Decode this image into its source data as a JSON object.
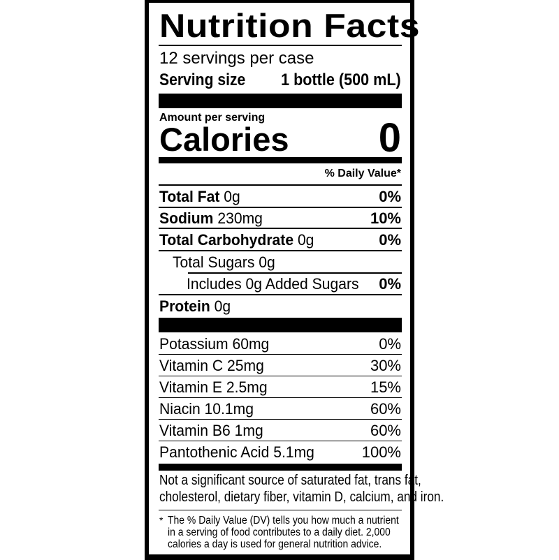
{
  "title": "Nutrition Facts",
  "servings_per_container": "12 servings per case",
  "serving_size": {
    "label": "Serving size",
    "value": "1 bottle (500 mL)"
  },
  "amount_per_serving": "Amount per serving",
  "calories": {
    "label": "Calories",
    "value": "0"
  },
  "daily_value_header": "% Daily Value*",
  "nutrients": [
    {
      "name": "Total Fat",
      "amount": "0g",
      "dv": "0%"
    },
    {
      "name": "Sodium",
      "amount": "230mg",
      "dv": "10%"
    },
    {
      "name": "Total Carbohydrate",
      "amount": "0g",
      "dv": "0%"
    },
    {
      "name": "Total Sugars 0g",
      "amount": "",
      "dv": ""
    },
    {
      "name": "Includes 0g Added Sugars",
      "amount": "",
      "dv": "0%"
    },
    {
      "name": "Protein",
      "amount": "0g",
      "dv": ""
    }
  ],
  "micronutrients": [
    {
      "name": "Potassium 60mg",
      "dv": "0%"
    },
    {
      "name": "Vitamin C 25mg",
      "dv": "30%"
    },
    {
      "name": "Vitamin E 2.5mg",
      "dv": "15%"
    },
    {
      "name": "Niacin 10.1mg",
      "dv": "60%"
    },
    {
      "name": "Vitamin B6 1mg",
      "dv": "60%"
    },
    {
      "name": "Pantothenic Acid 5.1mg",
      "dv": "100%"
    }
  ],
  "not_significant": [
    "Not a significant source of saturated fat, trans fat,",
    "cholesterol, dietary fiber, vitamin D, calcium, and iron."
  ],
  "footnote": {
    "marker": "*",
    "lines": [
      "The % Daily Value (DV) tells you how much a nutrient",
      "in a serving of food contributes to a daily diet. 2,000",
      "calories a day is used for general nutrition advice."
    ]
  }
}
